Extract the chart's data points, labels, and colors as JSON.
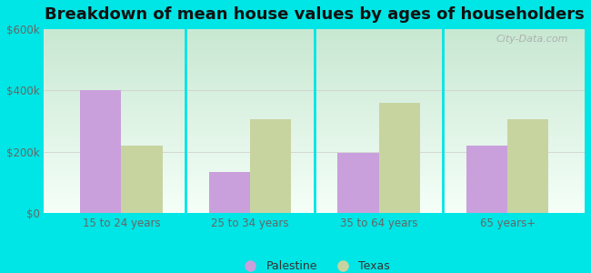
{
  "title": "Breakdown of mean house values by ages of householders",
  "categories": [
    "15 to 24 years",
    "25 to 34 years",
    "35 to 64 years",
    "65 years+"
  ],
  "palestine_values": [
    400000,
    135000,
    195000,
    220000
  ],
  "texas_values": [
    220000,
    305000,
    360000,
    305000
  ],
  "palestine_color": "#c9a0dc",
  "texas_color": "#c8d4a0",
  "outer_background": "#00e5e5",
  "ylim": [
    0,
    600000
  ],
  "yticks": [
    0,
    200000,
    400000,
    600000
  ],
  "ytick_labels": [
    "$0",
    "$200k",
    "$400k",
    "$600k"
  ],
  "bar_width": 0.32,
  "title_fontsize": 13,
  "watermark": "City-Data.com",
  "grad_top": "#c8e8c8",
  "grad_bottom": "#f0faf0"
}
